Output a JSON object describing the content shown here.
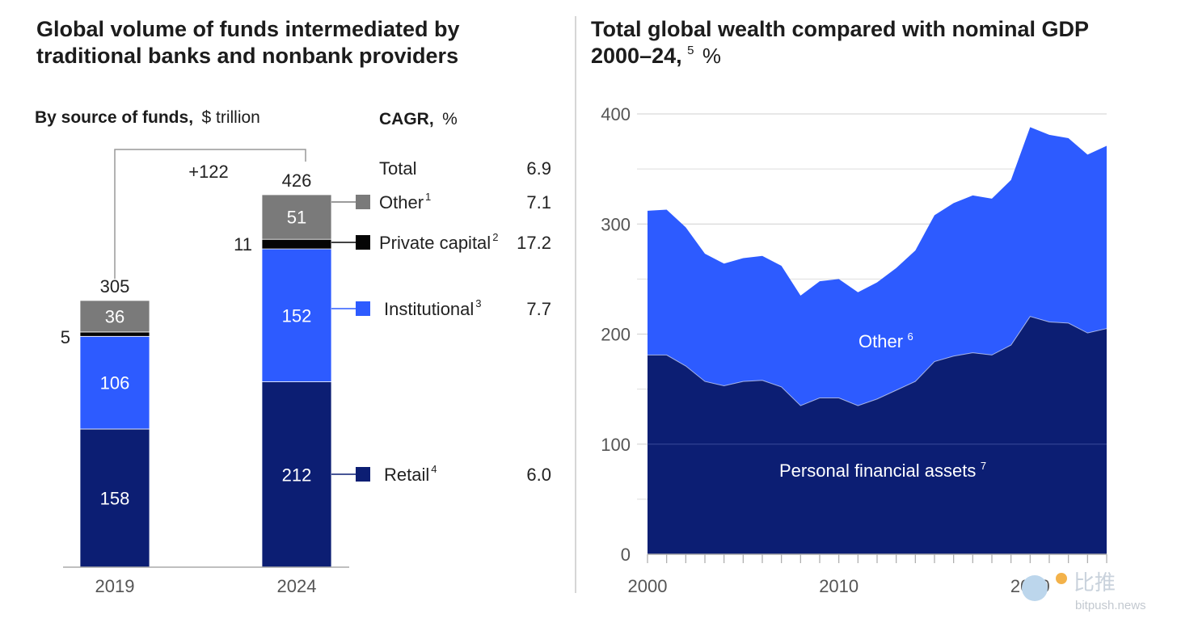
{
  "left_chart": {
    "title_line1": "Global volume of funds intermediated by",
    "title_line2": "traditional banks and nonbank providers",
    "subtitle_bold": "By source of funds,",
    "subtitle_unit": "$ trillion",
    "cagr_header_bold": "CAGR,",
    "cagr_header_unit": "%",
    "increase_label": "+122",
    "total_row": {
      "label": "Total",
      "cagr": "6.9"
    },
    "legend": [
      {
        "key": "other",
        "label": "Other",
        "sup": "1",
        "cagr": "7.1",
        "color": "#7a7a7a"
      },
      {
        "key": "private",
        "label": "Private capital",
        "sup": "2",
        "cagr": "17.2",
        "color": "#050505"
      },
      {
        "key": "institutional",
        "label": "Institutional",
        "sup": "3",
        "cagr": "7.7",
        "color": "#2d5bff"
      },
      {
        "key": "retail",
        "label": "Retail",
        "sup": "4",
        "cagr": "6.0",
        "color": "#0c1e73"
      }
    ]
  },
  "right_chart": {
    "title_line1": "Total global wealth compared with nominal GDP",
    "title_line2": "2000–24,",
    "title_sup": "5",
    "title_unit": "%",
    "label_other": "Other",
    "label_other_sup": "6",
    "label_personal": "Personal financial assets",
    "label_personal_sup": "7",
    "colors": {
      "other": "#2d5bff",
      "personal": "#0c1e73"
    }
  },
  "watermark": {
    "text": "比推",
    "domain": "bitpush.news"
  },
  "chart_data": [
    {
      "type": "bar",
      "stacked": true,
      "categories": [
        "2019",
        "2024"
      ],
      "totals": [
        "305",
        "426"
      ],
      "series": [
        {
          "name": "Retail",
          "values": [
            158,
            212
          ],
          "labels": [
            "158",
            "212"
          ]
        },
        {
          "name": "Institutional",
          "values": [
            106,
            152
          ],
          "labels": [
            "106",
            "152"
          ]
        },
        {
          "name": "Private capital",
          "values": [
            5,
            11
          ],
          "labels": [
            "5",
            "11"
          ]
        },
        {
          "name": "Other",
          "values": [
            36,
            51
          ],
          "labels": [
            "36",
            "51"
          ]
        }
      ],
      "ylim": [
        0,
        426
      ]
    },
    {
      "type": "area",
      "stacked": true,
      "x": [
        2000,
        2001,
        2002,
        2003,
        2004,
        2005,
        2006,
        2007,
        2008,
        2009,
        2010,
        2011,
        2012,
        2013,
        2014,
        2015,
        2016,
        2017,
        2018,
        2019,
        2020,
        2021,
        2022,
        2023,
        2024
      ],
      "series": [
        {
          "name": "Personal financial assets",
          "values": [
            181,
            181,
            171,
            157,
            153,
            157,
            158,
            152,
            135,
            142,
            142,
            135,
            141,
            149,
            157,
            175,
            180,
            183,
            181,
            190,
            216,
            211,
            210,
            201,
            205
          ]
        },
        {
          "name": "Other",
          "values": [
            131,
            132,
            126,
            116,
            111,
            112,
            113,
            110,
            100,
            106,
            108,
            103,
            106,
            111,
            119,
            133,
            139,
            143,
            142,
            150,
            172,
            170,
            168,
            162,
            166
          ]
        }
      ],
      "ylim": [
        0,
        400
      ],
      "yticks": [
        "0",
        "100",
        "200",
        "300",
        "400"
      ],
      "xticks": [
        "2000",
        "2010",
        "2020"
      ],
      "grid": true
    }
  ]
}
